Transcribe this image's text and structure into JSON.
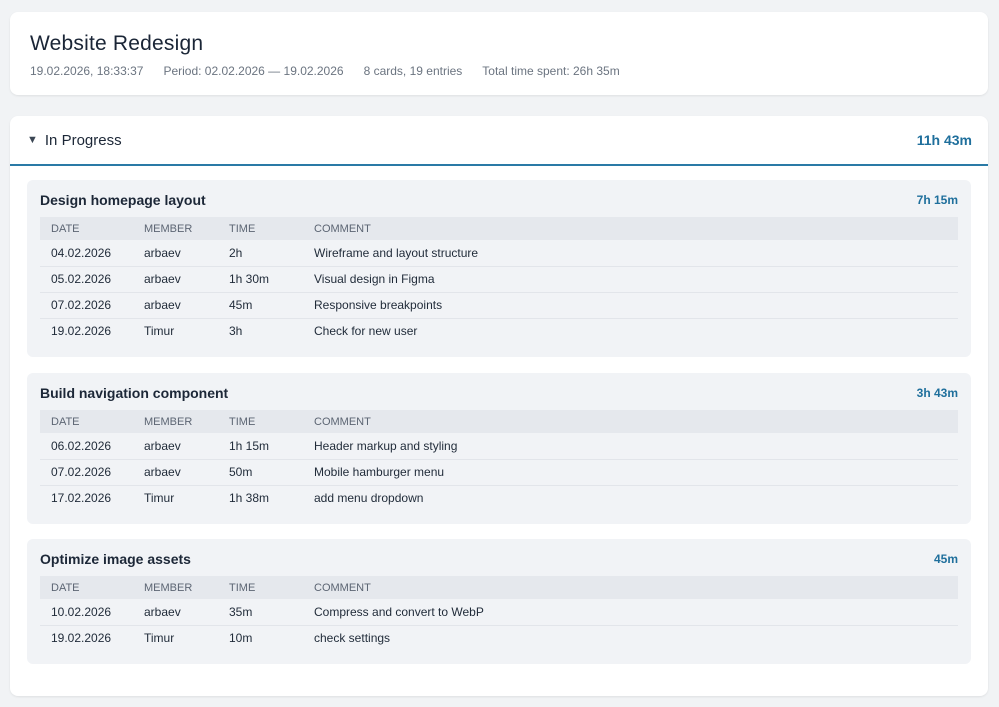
{
  "header": {
    "title": "Website Redesign",
    "generated": "19.02.2026, 18:33:37",
    "period": "Period: 02.02.2026 — 19.02.2026",
    "counts": "8 cards, 19 entries",
    "total": "Total time spent: 26h 35m"
  },
  "section": {
    "title": "In Progress",
    "total": "11h 43m",
    "expanded": true
  },
  "columns": [
    "DATE",
    "MEMBER",
    "TIME",
    "COMMENT"
  ],
  "cards": [
    {
      "name": "Design homepage layout",
      "total": "7h 15m",
      "rows": [
        [
          "04.02.2026",
          "arbaev",
          "2h",
          "Wireframe and layout structure"
        ],
        [
          "05.02.2026",
          "arbaev",
          "1h 30m",
          "Visual design in Figma"
        ],
        [
          "07.02.2026",
          "arbaev",
          "45m",
          "Responsive breakpoints"
        ],
        [
          "19.02.2026",
          "Timur",
          "3h",
          "Check for new user"
        ]
      ]
    },
    {
      "name": "Build navigation component",
      "total": "3h 43m",
      "rows": [
        [
          "06.02.2026",
          "arbaev",
          "1h 15m",
          "Header markup and styling"
        ],
        [
          "07.02.2026",
          "arbaev",
          "50m",
          "Mobile hamburger menu"
        ],
        [
          "17.02.2026",
          "Timur",
          "1h 38m",
          "add menu dropdown"
        ]
      ]
    },
    {
      "name": "Optimize image assets",
      "total": "45m",
      "rows": [
        [
          "10.02.2026",
          "arbaev",
          "35m",
          "Compress and convert to WebP"
        ],
        [
          "19.02.2026",
          "Timur",
          "10m",
          "check settings"
        ]
      ]
    }
  ]
}
